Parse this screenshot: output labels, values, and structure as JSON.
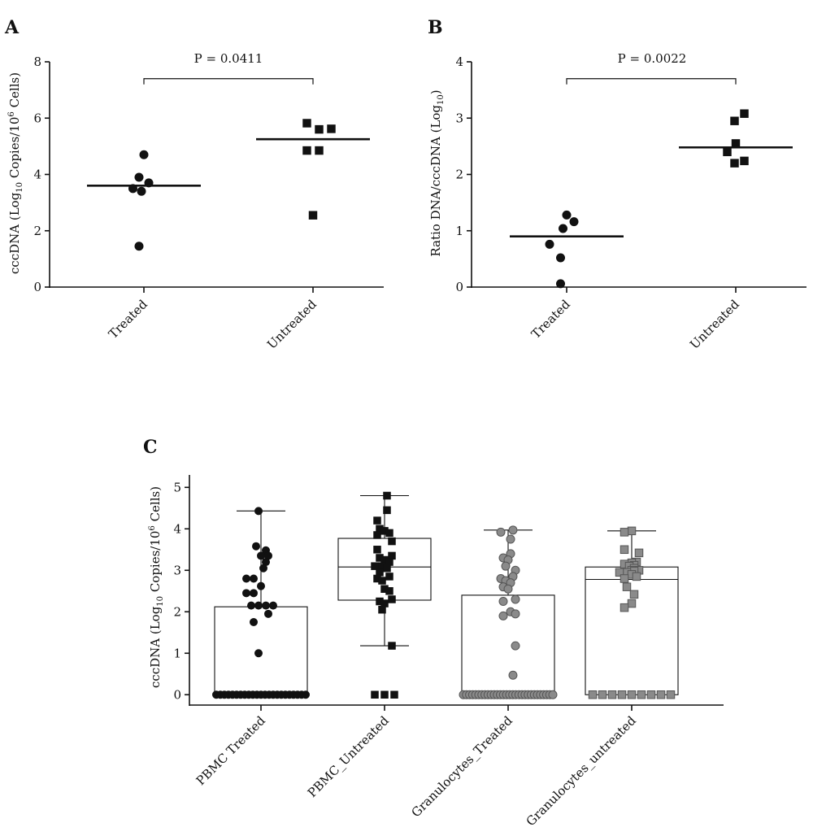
{
  "panels": {
    "A": {
      "letter": "A",
      "ylabel_pre": "cccDNA (Log",
      "ylabel_sub": "10",
      "ylabel_mid": " Copies/10",
      "ylabel_sup": "6",
      "ylabel_post": " Cells)",
      "pvalue": "P = 0.0411"
    },
    "B": {
      "letter": "B",
      "ylabel_pre": "Ratio DNA/cccDNA (Log",
      "ylabel_sub": "10",
      "ylabel_post": ")",
      "pvalue": "P = 0.0022"
    },
    "C": {
      "letter": "C",
      "ylabel_pre": "cccDNA (Log",
      "ylabel_sub": "10",
      "ylabel_mid": " Copies/10",
      "ylabel_sup": "6",
      "ylabel_post": " Cells)"
    }
  },
  "chart_data": [
    {
      "panel": "A",
      "type": "scatter",
      "categories": [
        "Treated",
        "Untreated"
      ],
      "ylim": [
        0,
        8
      ],
      "yticks": [
        0,
        2,
        4,
        6,
        8
      ],
      "series": [
        {
          "category": "Treated",
          "marker": "circle",
          "color": "#111111",
          "median": 3.6,
          "points": [
            [
              0,
              4.7
            ],
            [
              -0.04,
              3.9
            ],
            [
              0.04,
              3.7
            ],
            [
              -0.09,
              3.5
            ],
            [
              -0.02,
              3.4
            ],
            [
              -0.04,
              1.45
            ]
          ]
        },
        {
          "category": "Untreated",
          "marker": "square",
          "color": "#111111",
          "median": 5.25,
          "points": [
            [
              -0.05,
              5.82
            ],
            [
              0.05,
              5.6
            ],
            [
              0.15,
              5.62
            ],
            [
              -0.05,
              4.85
            ],
            [
              0.05,
              4.85
            ],
            [
              0.0,
              2.55
            ]
          ]
        }
      ],
      "annotation": {
        "between": [
          0,
          1
        ],
        "y": 7.4
      }
    },
    {
      "panel": "B",
      "type": "scatter",
      "categories": [
        "Treated",
        "Untreated"
      ],
      "ylim": [
        0,
        4
      ],
      "yticks": [
        0,
        1,
        2,
        3,
        4
      ],
      "series": [
        {
          "category": "Treated",
          "marker": "circle",
          "color": "#111111",
          "median": 0.9,
          "points": [
            [
              0.0,
              1.28
            ],
            [
              0.06,
              1.16
            ],
            [
              -0.03,
              1.04
            ],
            [
              -0.14,
              0.76
            ],
            [
              -0.05,
              0.52
            ],
            [
              -0.05,
              0.06
            ]
          ]
        },
        {
          "category": "Untreated",
          "marker": "square",
          "color": "#111111",
          "median": 2.48,
          "points": [
            [
              0.07,
              3.08
            ],
            [
              -0.01,
              2.95
            ],
            [
              0.0,
              2.55
            ],
            [
              -0.07,
              2.4
            ],
            [
              -0.01,
              2.2
            ],
            [
              0.07,
              2.24
            ]
          ]
        }
      ],
      "annotation": {
        "between": [
          0,
          1
        ],
        "y": 3.7
      }
    },
    {
      "panel": "C",
      "type": "box",
      "categories": [
        "PBMC Treated",
        "PBMC_Untreated",
        "Granulocytes_Treated",
        "Granulocytes_untreated"
      ],
      "ylim": [
        -0.25,
        5.3
      ],
      "yticks": [
        0,
        1,
        2,
        3,
        4,
        5
      ],
      "groups": [
        {
          "name": "PBMC Treated",
          "marker": "circle",
          "color": "#111111",
          "box": {
            "q1": 0,
            "median": 0,
            "q3": 2.12,
            "whisker_low": 0,
            "whisker_high": 4.43
          },
          "values": [
            4.43,
            3.58,
            3.48,
            3.35,
            3.35,
            3.2,
            3.05,
            2.8,
            2.8,
            2.62,
            2.45,
            2.45,
            2.15,
            2.15,
            2.15,
            2.15,
            1.95,
            1.75,
            1.0,
            0,
            0,
            0,
            0,
            0,
            0,
            0,
            0,
            0,
            0,
            0,
            0,
            0,
            0,
            0,
            0,
            0,
            0,
            0,
            0,
            0,
            0,
            0
          ]
        },
        {
          "name": "PBMC_Untreated",
          "marker": "square",
          "color": "#111111",
          "box": {
            "q1": 2.28,
            "median": 3.08,
            "q3": 3.77,
            "whisker_low": 1.18,
            "whisker_high": 4.8
          },
          "values": [
            4.8,
            4.45,
            4.2,
            4.0,
            3.95,
            3.9,
            3.85,
            3.7,
            3.5,
            3.35,
            3.3,
            3.25,
            3.2,
            3.1,
            3.1,
            3.05,
            2.95,
            2.85,
            2.8,
            2.75,
            2.55,
            2.5,
            2.3,
            2.25,
            2.2,
            2.05,
            1.18,
            0,
            0,
            0
          ]
        },
        {
          "name": "Granulocytes_Treated",
          "marker": "circle",
          "color": "#8a8a8a",
          "box": {
            "q1": 0,
            "median": 0,
            "q3": 2.4,
            "whisker_low": 0,
            "whisker_high": 3.97
          },
          "values": [
            3.97,
            3.92,
            3.75,
            3.4,
            3.3,
            3.25,
            3.1,
            3.0,
            2.85,
            2.8,
            2.75,
            2.7,
            2.6,
            2.55,
            2.3,
            2.25,
            2.0,
            1.95,
            1.9,
            1.18,
            0.47,
            0,
            0,
            0,
            0,
            0,
            0,
            0,
            0,
            0,
            0,
            0,
            0,
            0,
            0,
            0,
            0,
            0,
            0,
            0,
            0,
            0,
            0,
            0,
            0,
            0,
            0,
            0,
            0,
            0,
            0
          ]
        },
        {
          "name": "Granulocytes_untreated",
          "marker": "square",
          "color": "#8a8a8a",
          "box": {
            "q1": 0,
            "median": 2.78,
            "q3": 3.08,
            "whisker_low": 0,
            "whisker_high": 3.95
          },
          "values": [
            3.95,
            3.92,
            3.5,
            3.42,
            3.2,
            3.18,
            3.15,
            3.12,
            3.1,
            3.05,
            3.0,
            3.0,
            2.98,
            2.95,
            2.95,
            2.9,
            2.85,
            2.8,
            2.6,
            2.42,
            2.2,
            2.1,
            0,
            0,
            0,
            0,
            0,
            0,
            0,
            0,
            0
          ]
        }
      ]
    }
  ]
}
